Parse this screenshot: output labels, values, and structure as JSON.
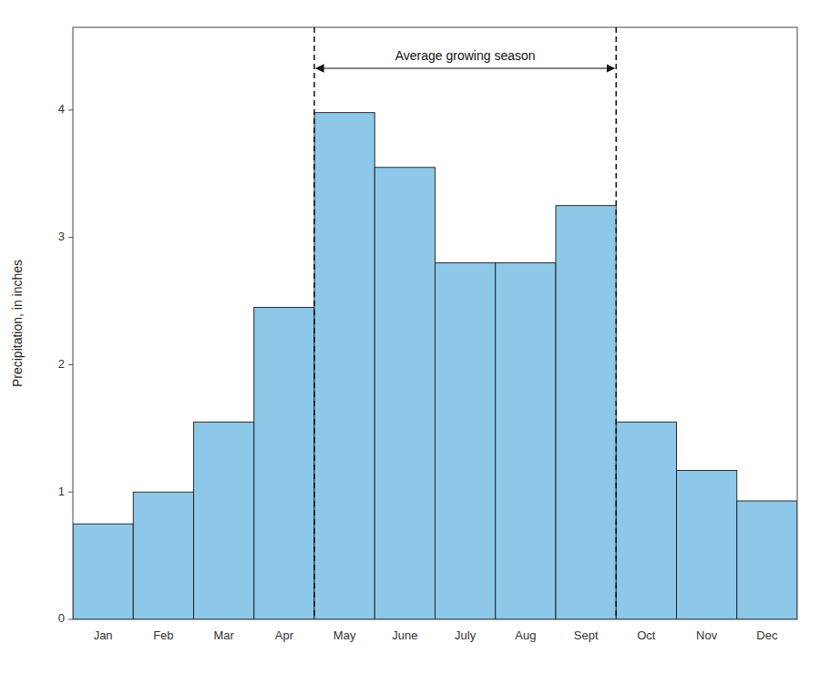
{
  "chart_data": {
    "type": "bar",
    "categories": [
      "Jan",
      "Feb",
      "Mar",
      "Apr",
      "May",
      "June",
      "July",
      "Aug",
      "Sept",
      "Oct",
      "Nov",
      "Dec"
    ],
    "values": [
      0.75,
      1.0,
      1.55,
      2.45,
      3.98,
      3.55,
      2.8,
      2.8,
      3.25,
      1.55,
      1.17,
      0.93
    ],
    "color": "#8DC8E8",
    "ylabel": "Precipitation, in inches",
    "ylim": [
      0,
      4.65
    ],
    "yticks": [
      0,
      1,
      2,
      3,
      4
    ],
    "annotation": {
      "text": "Average growing season",
      "span": [
        "May",
        "Sept"
      ]
    }
  }
}
